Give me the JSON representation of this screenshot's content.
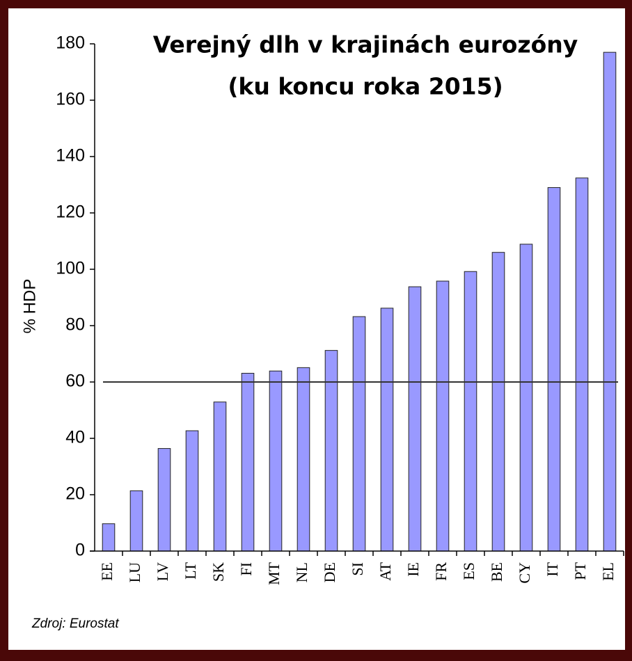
{
  "chart_data": {
    "type": "bar",
    "title": "Verejný dlh v krajinách eurozóny",
    "subtitle": "(ku koncu roka 2015)",
    "y_label": "% HDP",
    "source": "Zdroj: Eurostat",
    "categories": [
      "EE",
      "LU",
      "LV",
      "LT",
      "SK",
      "FI",
      "MT",
      "NL",
      "DE",
      "SI",
      "AT",
      "IE",
      "FR",
      "ES",
      "BE",
      "CY",
      "IT",
      "PT",
      "EL"
    ],
    "values": [
      9.7,
      21.4,
      36.4,
      42.7,
      52.9,
      63.1,
      63.9,
      65.1,
      71.2,
      83.2,
      86.2,
      93.8,
      95.8,
      99.2,
      106.0,
      108.9,
      129.0,
      132.4,
      177.0
    ],
    "color": "#9999ff",
    "reference_line": 60,
    "ylim": [
      0,
      180
    ],
    "yticks": [
      0,
      20,
      40,
      60,
      80,
      100,
      120,
      140,
      160,
      180
    ],
    "grid": false
  }
}
